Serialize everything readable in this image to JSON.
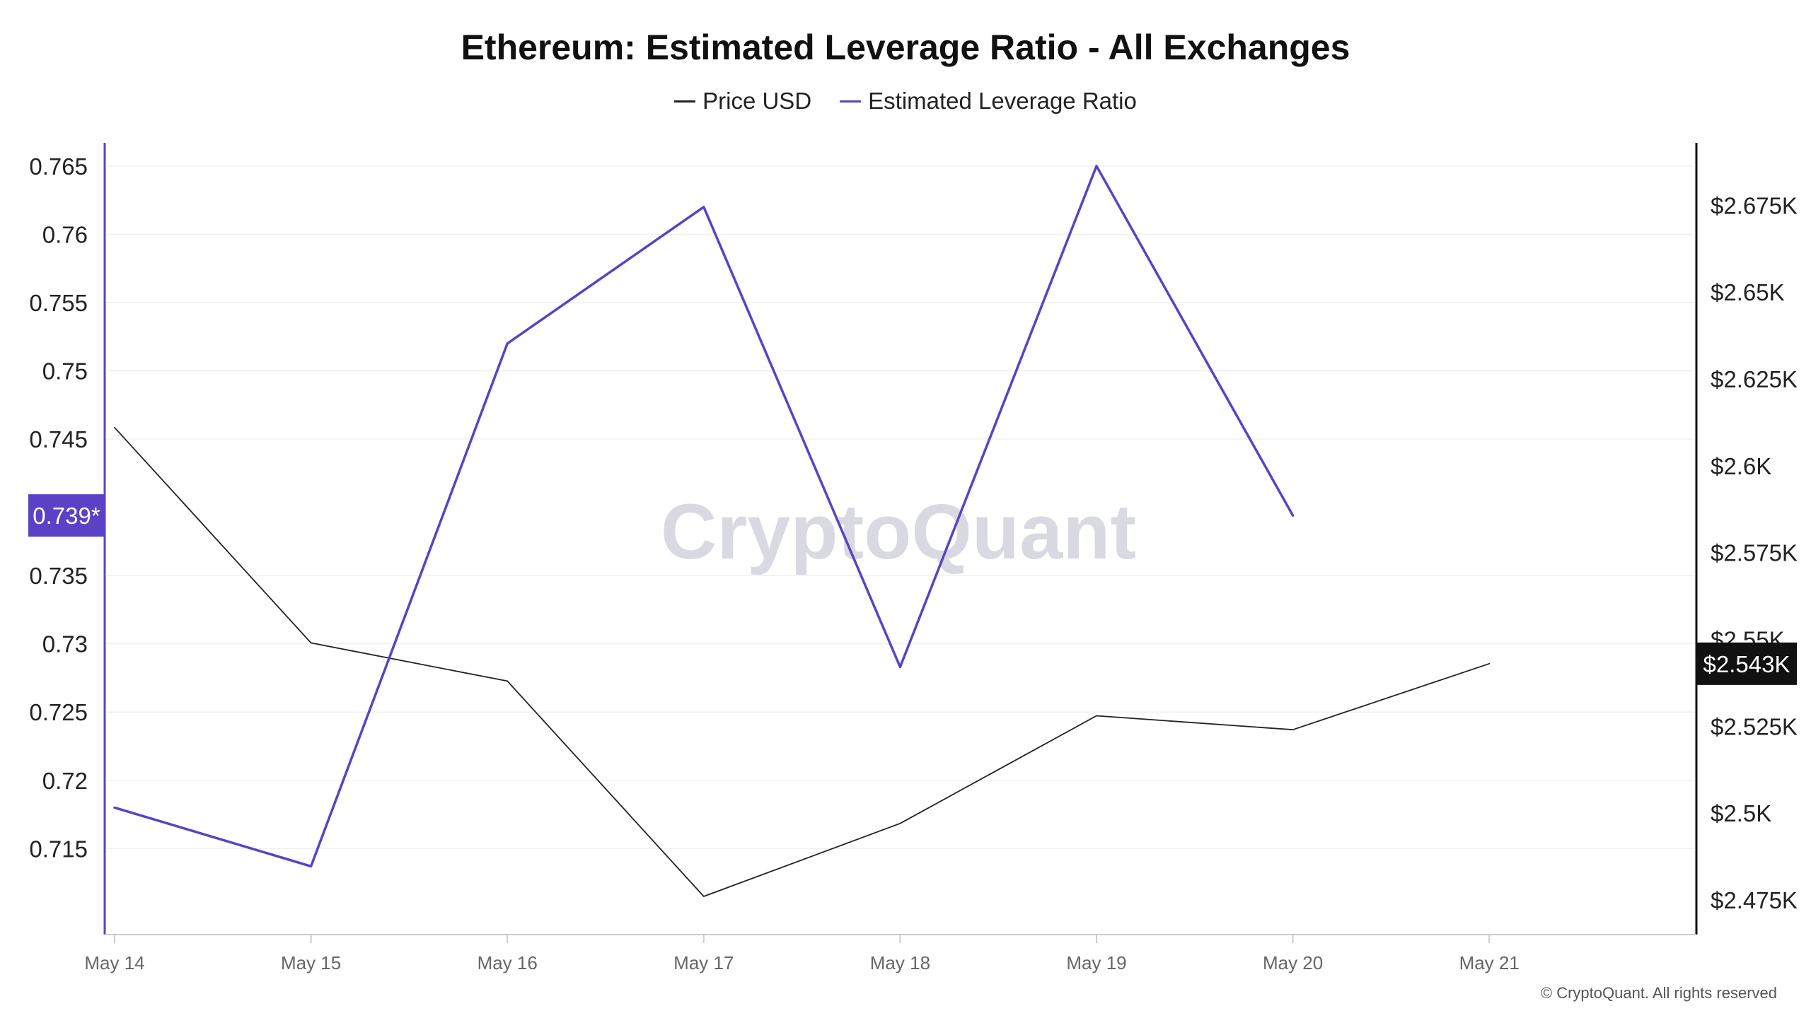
{
  "chart_data": {
    "type": "line",
    "title": "Ethereum: Estimated Leverage Ratio - All Exchanges",
    "x": [
      "May 14",
      "May 15",
      "May 16",
      "May 17",
      "May 18",
      "May 19",
      "May 20",
      "May 21"
    ],
    "series": [
      {
        "name": "Price USD",
        "axis": "right",
        "color": "#222222",
        "values": [
          2611,
          2549,
          2538,
          2476,
          2497,
          2528,
          2524,
          2543
        ]
      },
      {
        "name": "Estimated Leverage Ratio",
        "axis": "left",
        "color": "#5a42c7",
        "values": [
          0.718,
          0.7137,
          0.752,
          0.762,
          0.7283,
          0.765,
          0.7394,
          null
        ]
      }
    ],
    "y_left": {
      "ticks": [
        0.765,
        0.76,
        0.755,
        0.75,
        0.745,
        0.735,
        0.73,
        0.725,
        0.72,
        0.715
      ],
      "tick_labels": [
        "0.765",
        "0.76",
        "0.755",
        "0.75",
        "0.745",
        "0.735",
        "0.73",
        "0.725",
        "0.72",
        "0.715"
      ],
      "range": [
        0.7087,
        0.7667
      ],
      "current_label": "0.739*",
      "current_value": 0.7394,
      "current_color": "#5a42c7"
    },
    "y_right": {
      "ticks": [
        2675,
        2650,
        2625,
        2600,
        2575,
        2550,
        2525,
        2500,
        2475
      ],
      "tick_labels": [
        "$2.675K",
        "$2.65K",
        "$2.625K",
        "$2.6K",
        "$2.575K",
        "$2.55K",
        "$2.525K",
        "$2.5K",
        "$2.475K"
      ],
      "range": [
        2465,
        2693
      ],
      "current_label": "$2.543K",
      "current_value": 2543,
      "current_color": "#111111"
    },
    "grid": true,
    "legend_position": "top-center"
  },
  "watermark": "CryptoQuant",
  "copyright": "© CryptoQuant. All rights reserved"
}
